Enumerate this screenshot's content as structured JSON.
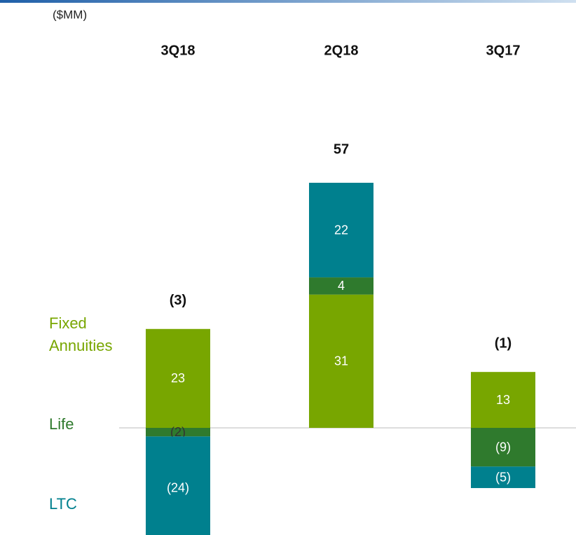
{
  "chart_data": {
    "type": "stacked_bar",
    "subtitle": "($MM)",
    "categories": [
      "3Q18",
      "2Q18",
      "3Q17"
    ],
    "series": [
      {
        "name": "Fixed Annuities",
        "color": "#78a600",
        "values": [
          23,
          31,
          13
        ],
        "value_labels": [
          "23",
          "31",
          "13"
        ]
      },
      {
        "name": "Life",
        "color": "#2f7a2d",
        "values": [
          -2,
          4,
          -9
        ],
        "value_labels": [
          "(2)",
          "4",
          "(9)"
        ]
      },
      {
        "name": "LTC",
        "color": "#00808e",
        "values": [
          -24,
          22,
          -5
        ],
        "value_labels": [
          "(24)",
          "22",
          "(5)"
        ]
      }
    ],
    "totals": {
      "values": [
        -3,
        57,
        -1
      ],
      "value_labels": [
        "(3)",
        "57",
        "(1)"
      ]
    }
  }
}
